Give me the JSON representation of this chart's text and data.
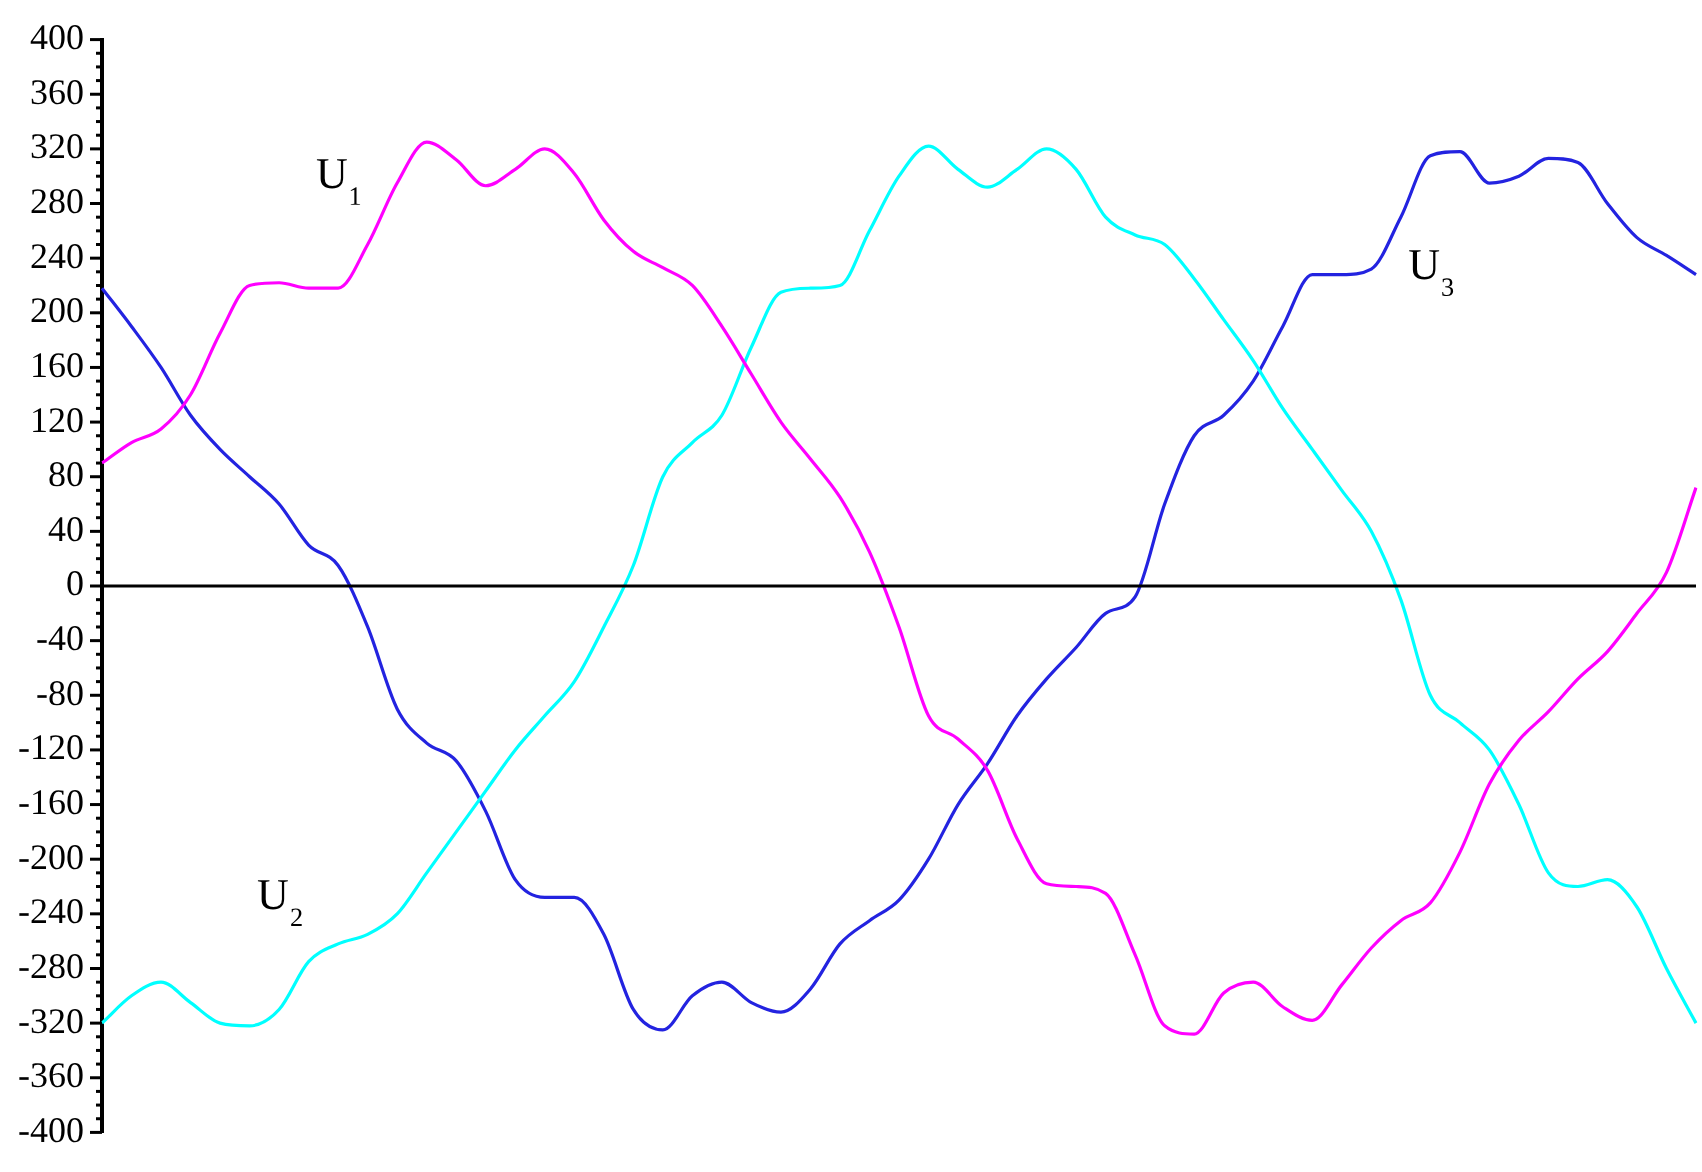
{
  "chart_data": {
    "type": "line",
    "categories": [
      null,
      null,
      null,
      null,
      null,
      null,
      null,
      null,
      null,
      null,
      null,
      null,
      null,
      null,
      null,
      null,
      null,
      null,
      null,
      null,
      null,
      null,
      null,
      null,
      null,
      null,
      null,
      null,
      null,
      null,
      null,
      null,
      null,
      null,
      null,
      null,
      null,
      null,
      null,
      null,
      null,
      null,
      null,
      null,
      null,
      null,
      null,
      null,
      null,
      null,
      null,
      null,
      null,
      null,
      null
    ],
    "series": [
      {
        "name": "U₁",
        "color": "#ff00ff",
        "values": [
          90,
          105,
          115,
          140,
          185,
          220,
          222,
          218,
          218,
          250,
          295,
          325,
          312,
          293,
          305,
          320,
          302,
          268,
          245,
          233,
          220,
          190,
          155,
          120,
          93,
          65,
          25,
          -30,
          -95,
          -112,
          -135,
          -185,
          -218,
          -220,
          -225,
          -270,
          -322,
          -328,
          -298,
          -290,
          -308,
          -318,
          -292,
          -265,
          -245,
          -232,
          -195,
          -145,
          -113,
          -92,
          -68,
          -48,
          -20,
          10,
          72
        ]
      },
      {
        "name": "U₂",
        "color": "#00ffff",
        "values": [
          -320,
          -300,
          -290,
          -305,
          -320,
          -322,
          -310,
          -275,
          -262,
          -255,
          -240,
          -210,
          -180,
          -150,
          -120,
          -95,
          -70,
          -30,
          15,
          80,
          105,
          125,
          175,
          215,
          218,
          220,
          260,
          300,
          322,
          305,
          292,
          305,
          320,
          305,
          270,
          257,
          250,
          225,
          195,
          165,
          130,
          100,
          70,
          40,
          -10,
          -80,
          -100,
          -120,
          -160,
          -210,
          -220,
          -215,
          -235,
          -280,
          -320
        ]
      },
      {
        "name": "U₃",
        "color": "#2323e0",
        "values": [
          218,
          190,
          160,
          125,
          100,
          80,
          60,
          30,
          15,
          -30,
          -90,
          -115,
          -128,
          -165,
          -215,
          -228,
          -228,
          -255,
          -310,
          -325,
          -300,
          -290,
          -305,
          -312,
          -295,
          -262,
          -245,
          -230,
          -200,
          -160,
          -130,
          -95,
          -68,
          -45,
          -20,
          -8,
          60,
          110,
          125,
          150,
          190,
          228,
          228,
          232,
          270,
          315,
          318,
          295,
          300,
          313,
          310,
          280,
          255,
          242,
          228
        ]
      }
    ],
    "ylim": [
      -400,
      400
    ],
    "yticks": [
      -400,
      {
        "value": -390,
        "label": null
      },
      {
        "value": -380,
        "label": null
      },
      {
        "value": -370,
        "label": null
      },
      -360,
      {
        "value": -350,
        "label": null
      },
      {
        "value": -340,
        "label": null
      },
      {
        "value": -330,
        "label": null
      },
      -320,
      {
        "value": -310,
        "label": null
      },
      {
        "value": -300,
        "label": null
      },
      {
        "value": -290,
        "label": null
      },
      -280,
      {
        "value": -270,
        "label": null
      },
      {
        "value": -260,
        "label": null
      },
      {
        "value": -250,
        "label": null
      },
      -240,
      {
        "value": -230,
        "label": null
      },
      {
        "value": -220,
        "label": null
      },
      {
        "value": -210,
        "label": null
      },
      -200,
      {
        "value": -190,
        "label": null
      },
      {
        "value": -180,
        "label": null
      },
      {
        "value": -170,
        "label": null
      },
      -160,
      {
        "value": -150,
        "label": null
      },
      {
        "value": -140,
        "label": null
      },
      {
        "value": -130,
        "label": null
      },
      -120,
      {
        "value": -110,
        "label": null
      },
      {
        "value": -100,
        "label": null
      },
      {
        "value": -90,
        "label": null
      },
      -80,
      {
        "value": -70,
        "label": null
      },
      {
        "value": -60,
        "label": null
      },
      {
        "value": -50,
        "label": null
      },
      -40,
      {
        "value": -30,
        "label": null
      },
      {
        "value": -20,
        "label": null
      },
      {
        "value": -10,
        "label": null
      },
      0,
      {
        "value": 10,
        "label": null
      },
      {
        "value": 20,
        "label": null
      },
      {
        "value": 30,
        "label": null
      },
      40,
      {
        "value": 50,
        "label": null
      },
      {
        "value": 60,
        "label": null
      },
      {
        "value": 70,
        "label": null
      },
      80,
      {
        "value": 90,
        "label": null
      },
      {
        "value": 100,
        "label": null
      },
      {
        "value": 110,
        "label": null
      },
      120,
      {
        "value": 130,
        "label": null
      },
      {
        "value": 140,
        "label": null
      },
      {
        "value": 150,
        "label": null
      },
      160,
      {
        "value": 170,
        "label": null
      },
      {
        "value": 180,
        "label": null
      },
      {
        "value": 190,
        "label": null
      },
      200,
      {
        "value": 210,
        "label": null
      },
      {
        "value": 220,
        "label": null
      },
      {
        "value": 230,
        "label": null
      },
      240,
      {
        "value": 250,
        "label": null
      },
      {
        "value": 260,
        "label": null
      },
      {
        "value": 270,
        "label": null
      },
      280,
      {
        "value": 290,
        "label": null
      },
      {
        "value": 300,
        "label": null
      },
      {
        "value": 310,
        "label": null
      },
      320,
      {
        "value": 330,
        "label": null
      },
      {
        "value": 340,
        "label": null
      },
      {
        "value": 350,
        "label": null
      },
      360,
      {
        "value": 370,
        "label": null
      },
      {
        "value": 380,
        "label": null
      },
      {
        "value": 390,
        "label": null
      },
      400
    ],
    "ref_lines": [
      {
        "axis": "y",
        "value": 0,
        "color": "#000000"
      }
    ],
    "tick_labels": "y",
    "grid": false,
    "legend": false,
    "marker": "none",
    "line_style": "solid"
  }
}
